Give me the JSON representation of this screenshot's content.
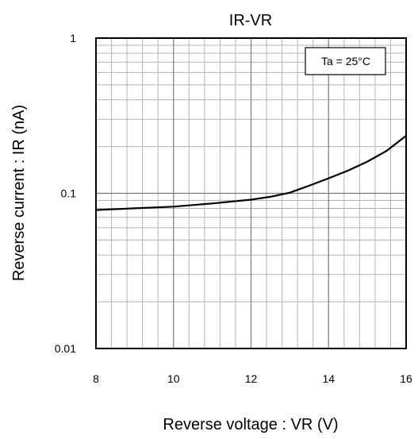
{
  "chart_data": {
    "type": "line",
    "title": "IR-VR",
    "xlabel": "Reverse voltage : VR (V)",
    "ylabel": "Reverse current : IR (nA)",
    "xlim": [
      8,
      16
    ],
    "ylim": [
      0.01,
      1
    ],
    "yscale": "log",
    "grid": true,
    "x_ticks": [
      8,
      10,
      12,
      14,
      16
    ],
    "x_tick_labels": [
      "8",
      "10",
      "12",
      "14",
      "16"
    ],
    "y_ticks": [
      0.01,
      0.1,
      1
    ],
    "y_tick_labels": [
      "0.01",
      "0.1",
      "1"
    ],
    "annotation": "Ta = 25°C",
    "series": [
      {
        "x": [
          8,
          9,
          10,
          11,
          12,
          12.5,
          13,
          13.5,
          14,
          14.5,
          15,
          15.5,
          16
        ],
        "values": [
          0.078,
          0.08,
          0.082,
          0.086,
          0.091,
          0.095,
          0.101,
          0.112,
          0.125,
          0.14,
          0.16,
          0.188,
          0.235
        ]
      }
    ]
  }
}
